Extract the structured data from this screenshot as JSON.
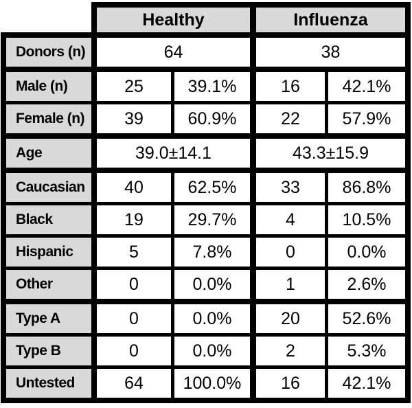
{
  "colors": {
    "header_bg": "#d9d9d9",
    "label_bg": "#d9d9d9",
    "cell_bg": "#ffffff",
    "border": "#000000",
    "text": "#000000"
  },
  "table": {
    "column_headers": [
      "Healthy",
      "Influenza"
    ],
    "rows": [
      {
        "label": "Donors (n)",
        "layout": "span",
        "values": [
          "64",
          "38"
        ]
      },
      {
        "label": "Male (n)",
        "layout": "split",
        "values": [
          "25",
          "39.1%",
          "16",
          "42.1%"
        ]
      },
      {
        "label": "Female (n)",
        "layout": "split",
        "values": [
          "39",
          "60.9%",
          "22",
          "57.9%"
        ]
      },
      {
        "label": "Age",
        "layout": "span",
        "values": [
          "39.0±14.1",
          "43.3±15.9"
        ]
      },
      {
        "label": "Caucasian",
        "layout": "split",
        "values": [
          "40",
          "62.5%",
          "33",
          "86.8%"
        ]
      },
      {
        "label": "Black",
        "layout": "split",
        "values": [
          "19",
          "29.7%",
          "4",
          "10.5%"
        ]
      },
      {
        "label": "Hispanic",
        "layout": "split",
        "values": [
          "5",
          "7.8%",
          "0",
          "0.0%"
        ]
      },
      {
        "label": "Other",
        "layout": "split",
        "values": [
          "0",
          "0.0%",
          "1",
          "2.6%"
        ]
      },
      {
        "label": "Type A",
        "layout": "split",
        "values": [
          "0",
          "0.0%",
          "20",
          "52.6%"
        ]
      },
      {
        "label": "Type B",
        "layout": "split",
        "values": [
          "0",
          "0.0%",
          "2",
          "5.3%"
        ]
      },
      {
        "label": "Untested",
        "layout": "split",
        "values": [
          "64",
          "100.0%",
          "16",
          "42.1%"
        ]
      }
    ]
  }
}
